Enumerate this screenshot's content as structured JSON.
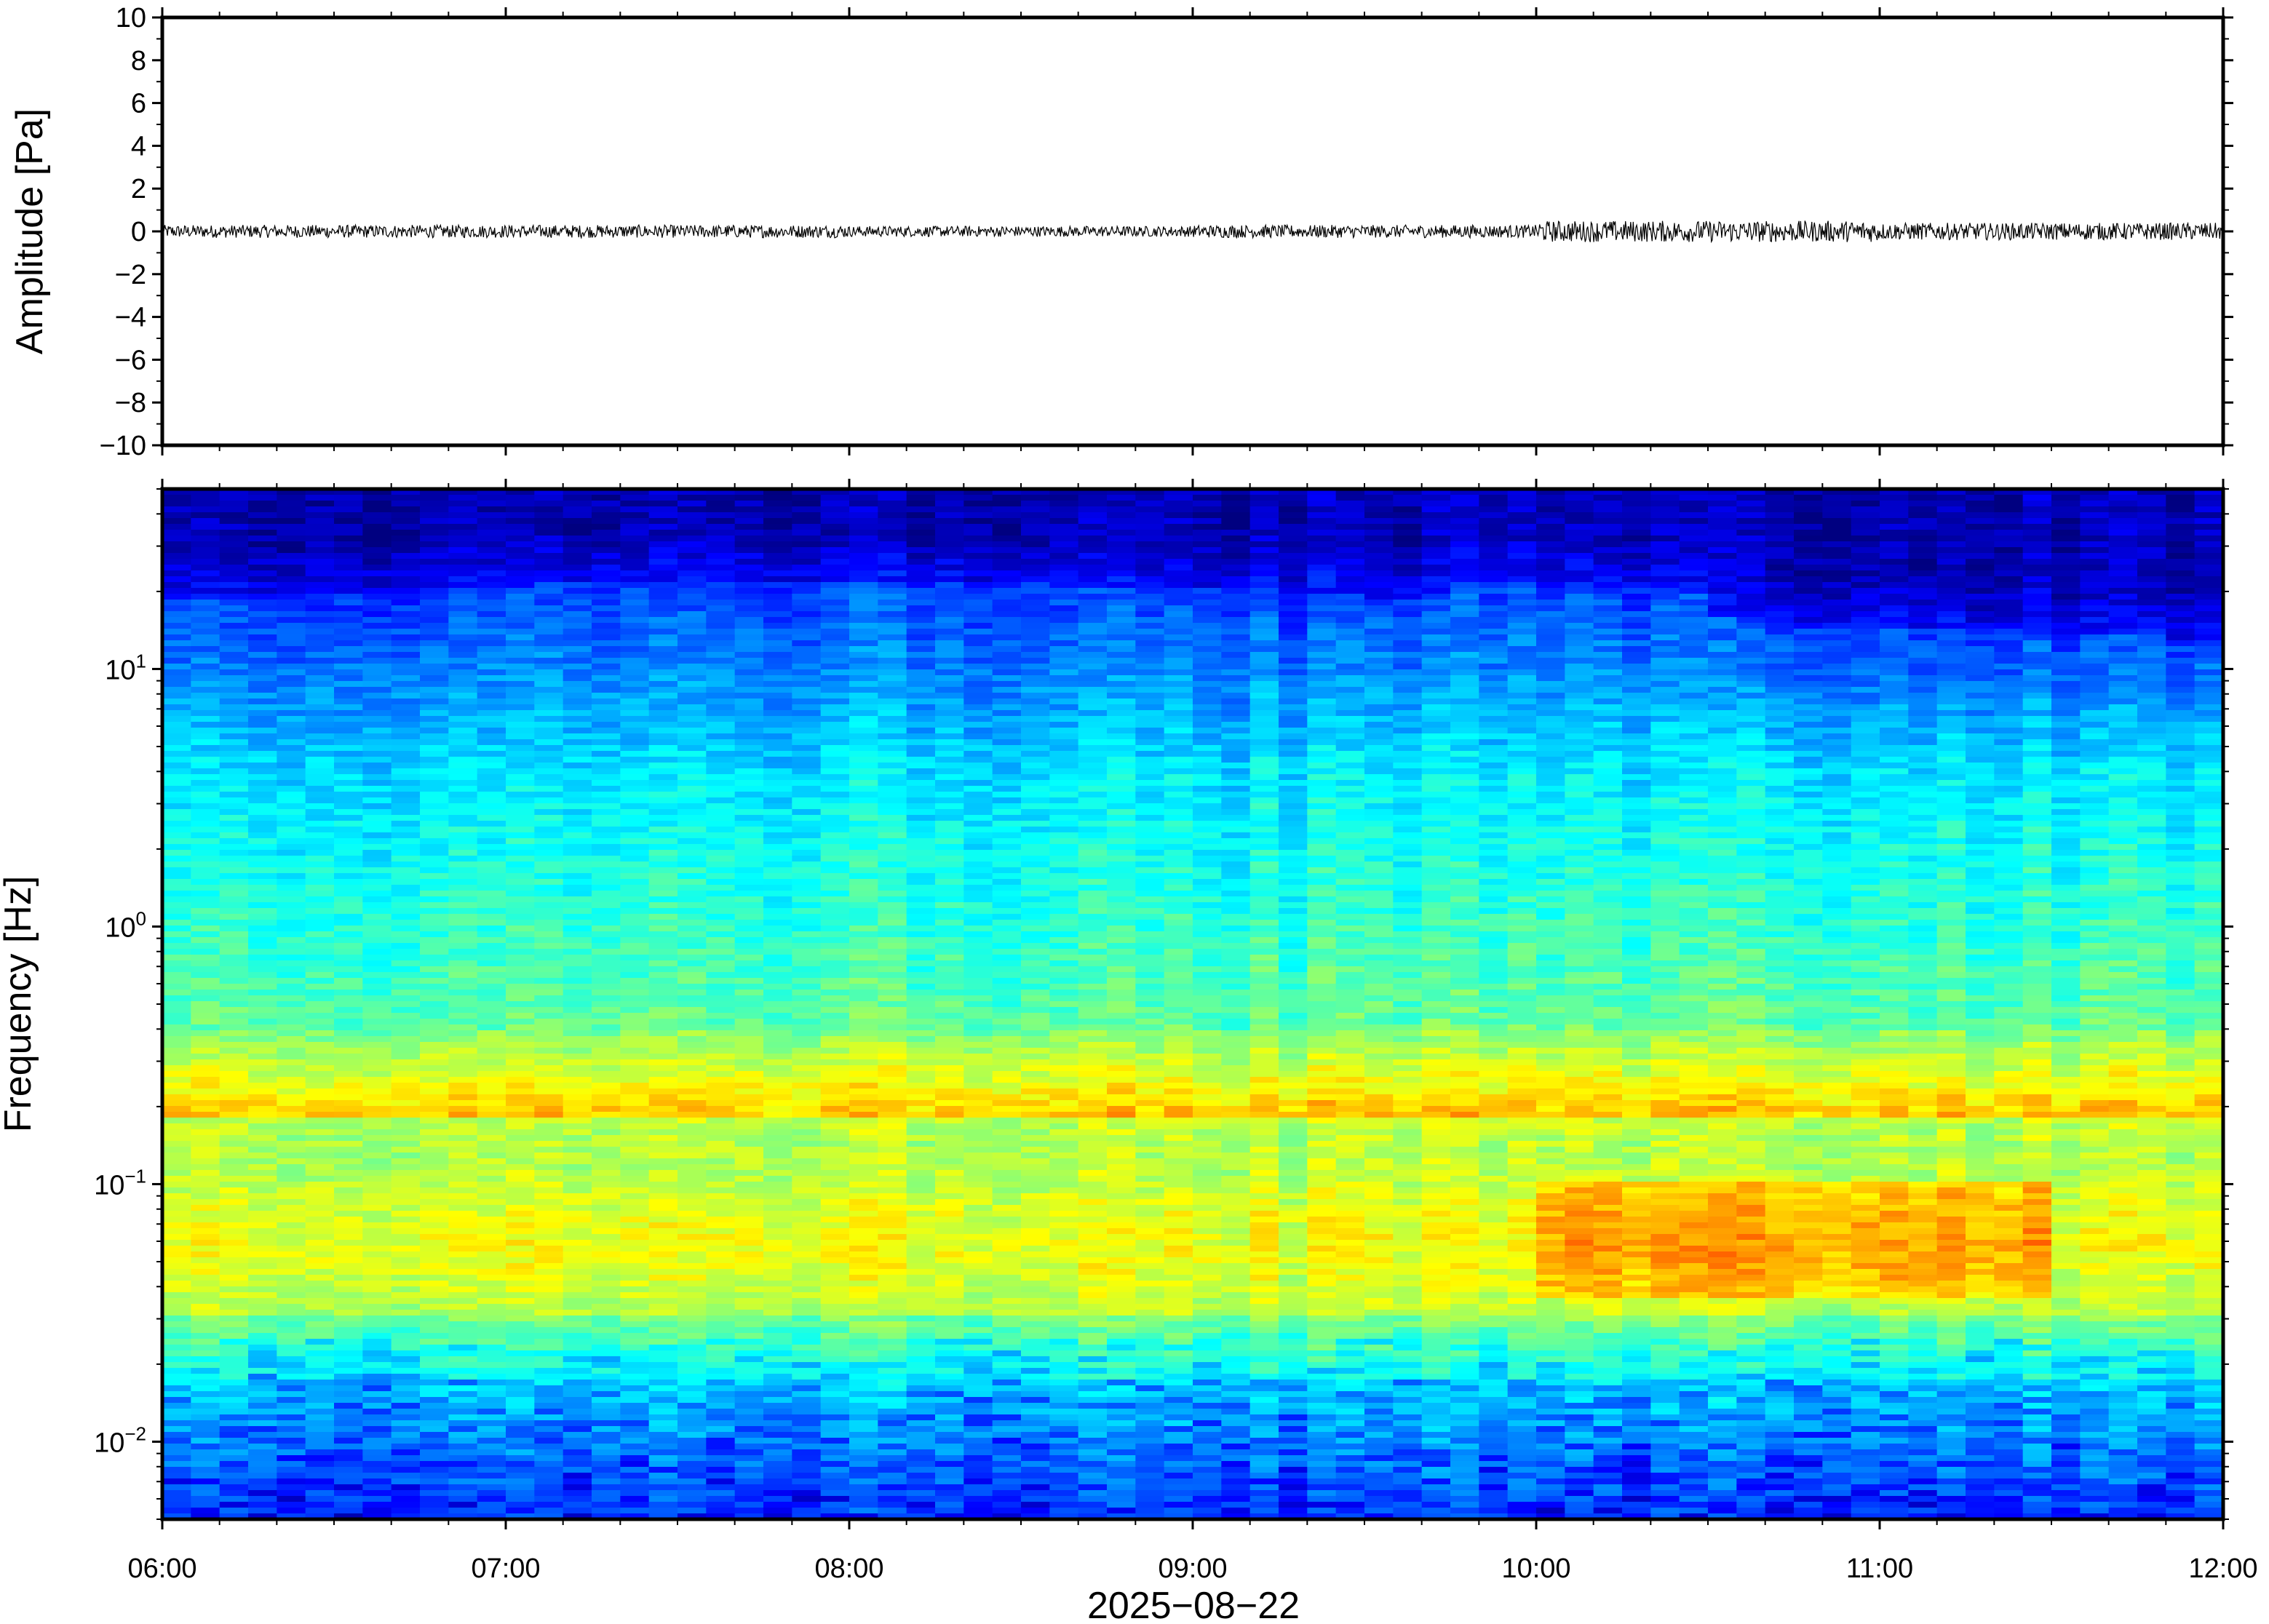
{
  "chart_data": [
    {
      "type": "line",
      "title": "",
      "ylabel": "Amplitude [Pa]",
      "xlabel": "",
      "ylim": [
        -10,
        10
      ],
      "y_ticks": [
        "10",
        "8",
        "6",
        "4",
        "2",
        "0",
        "−2",
        "−4",
        "−6",
        "−8",
        "−10"
      ],
      "y_tick_values": [
        10,
        8,
        6,
        4,
        2,
        0,
        -2,
        -4,
        -6,
        -8,
        -10
      ],
      "xlim": [
        "2025-08-22 06:00",
        "2025-08-22 12:00"
      ],
      "series": [
        {
          "description_free": true,
          "color": "#000000",
          "x_start": "2025-08-22 06:00",
          "x_end": "2025-08-22 12:00",
          "envelope_segments": [
            {
              "from": "06:00",
              "to": "07:00",
              "peak": 0.3
            },
            {
              "from": "07:00",
              "to": "08:00",
              "peak": 0.3
            },
            {
              "from": "08:00",
              "to": "09:00",
              "peak": 0.25
            },
            {
              "from": "09:00",
              "to": "10:00",
              "peak": 0.3
            },
            {
              "from": "10:00",
              "to": "11:00",
              "peak": 0.5
            },
            {
              "from": "11:00",
              "to": "12:00",
              "peak": 0.4
            }
          ]
        }
      ],
      "grid": false
    },
    {
      "type": "heatmap",
      "title": "",
      "ylabel": "Frequency [Hz]",
      "xlabel": "2025−08−22",
      "y_scale": "log",
      "ylim": [
        0.005,
        50
      ],
      "y_ticks": [
        {
          "value": 10,
          "base": "10",
          "exp": "1"
        },
        {
          "value": 1,
          "base": "10",
          "exp": "0"
        },
        {
          "value": 0.1,
          "base": "10",
          "exp": "−1"
        },
        {
          "value": 0.01,
          "base": "10",
          "exp": "−2"
        }
      ],
      "x_ticks": [
        "06:00",
        "07:00",
        "08:00",
        "09:00",
        "10:00",
        "11:00",
        "12:00"
      ],
      "xlim": [
        "2025-08-22 06:00",
        "2025-08-22 12:00"
      ],
      "colormap": "jet",
      "grid": false
    }
  ]
}
